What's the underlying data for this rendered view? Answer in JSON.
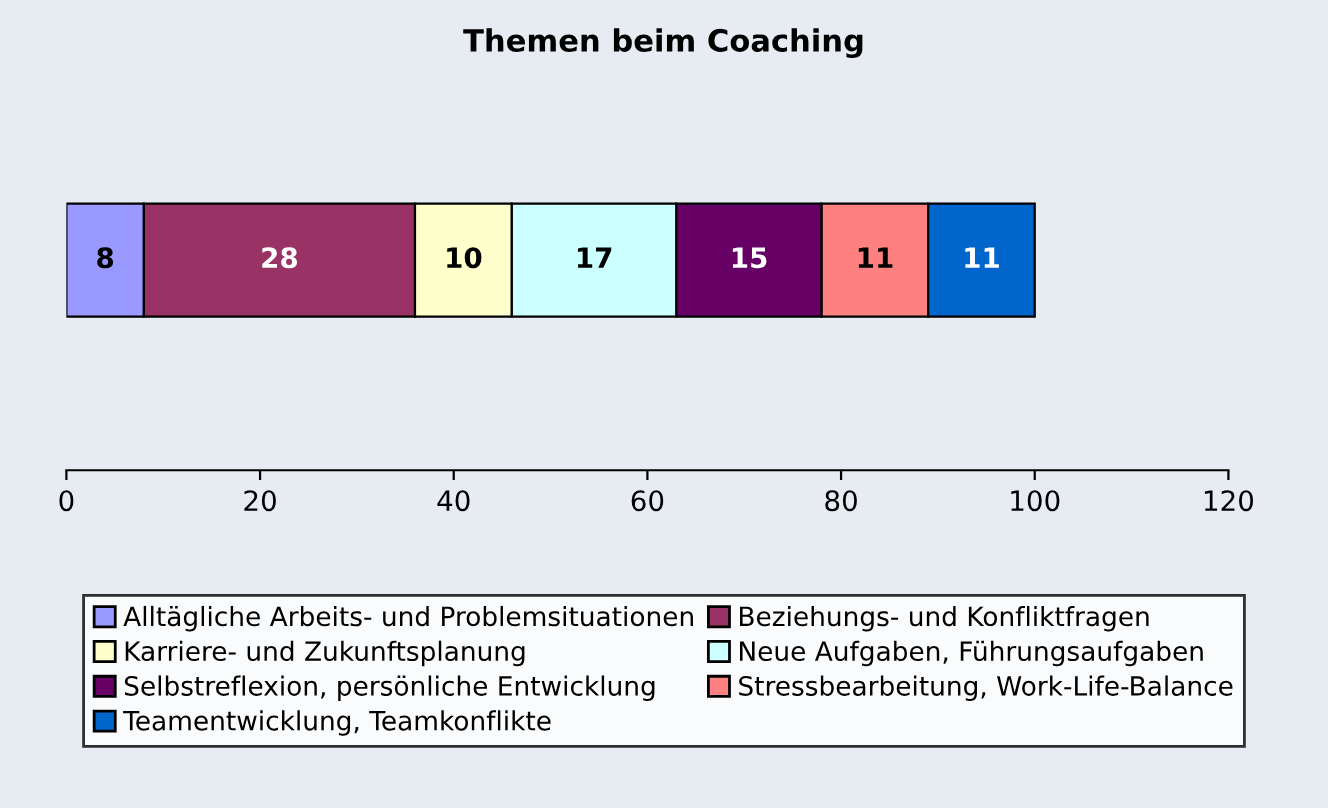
{
  "chart_data": {
    "type": "bar",
    "title": "Themen beim Coaching",
    "orientation": "horizontal",
    "stacked": true,
    "data_labels": true,
    "legend": "bottom",
    "grid": false,
    "categories": [
      null
    ],
    "xlim": [
      0,
      120
    ],
    "xticks": [
      0,
      20,
      40,
      60,
      80,
      100,
      120
    ],
    "series": [
      {
        "name": "Alltägliche Arbeits- und Problemsituationen",
        "color": "#9999ff",
        "values": [
          8
        ]
      },
      {
        "name": "Beziehungs- und Konfliktfragen",
        "color": "#993366",
        "values": [
          28
        ]
      },
      {
        "name": "Karriere- und Zukunftsplanung",
        "color": "#ffffcc",
        "values": [
          10
        ]
      },
      {
        "name": "Neue Aufgaben, Führungsaufgaben",
        "color": "#ccffff",
        "values": [
          17
        ]
      },
      {
        "name": "Selbstreflexion, persönliche Entwicklung",
        "color": "#660066",
        "values": [
          15
        ]
      },
      {
        "name": "Stressbearbeitung, Work-Life-Balance",
        "color": "#ff8080",
        "values": [
          11
        ]
      },
      {
        "name": "Teamentwicklung, Teamkonflikte",
        "color": "#0066cc",
        "values": [
          11
        ]
      }
    ]
  }
}
